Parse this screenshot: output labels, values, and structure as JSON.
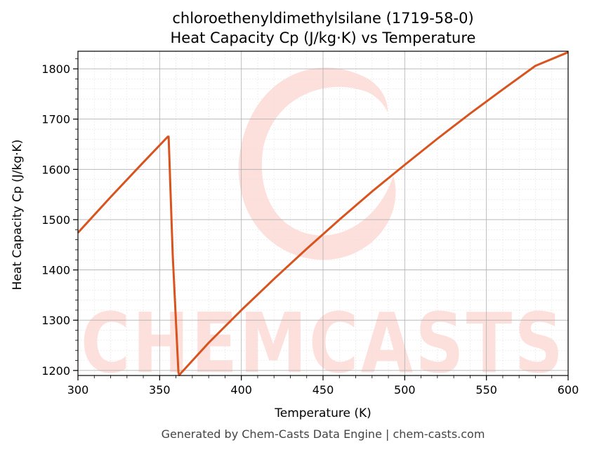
{
  "chart_data": {
    "type": "line",
    "title": "chloroethenyldimethylsilane (1719-58-0)",
    "subtitle": "Heat Capacity Cp (J/kg·K) vs Temperature",
    "xlabel": "Temperature (K)",
    "ylabel": "Heat Capacity Cp (J/kg·K)",
    "xlim": [
      300,
      600
    ],
    "ylim": [
      1190,
      1835
    ],
    "x_ticks": [
      300,
      350,
      400,
      450,
      500,
      550,
      600
    ],
    "y_ticks": [
      1200,
      1300,
      1400,
      1500,
      1600,
      1700,
      1800
    ],
    "grid": true,
    "line_color": "#d9531e",
    "series": [
      {
        "x": [
          300,
          320,
          340,
          355,
          355.5,
          358,
          361.5,
          362,
          380,
          400,
          420,
          440,
          460,
          480,
          500,
          520,
          540,
          560,
          580,
          600
        ],
        "y": [
          1474,
          1545,
          1614,
          1665,
          1665,
          1430,
          1196,
          1191,
          1255,
          1320,
          1382,
          1442,
          1500,
          1556,
          1609,
          1661,
          1711,
          1759,
          1806,
          1833
        ]
      }
    ]
  },
  "watermark": {
    "text": "CHEMCASTS",
    "color": "#fde0dc"
  },
  "footer": "Generated by Chem-Casts Data Engine | chem-casts.com"
}
